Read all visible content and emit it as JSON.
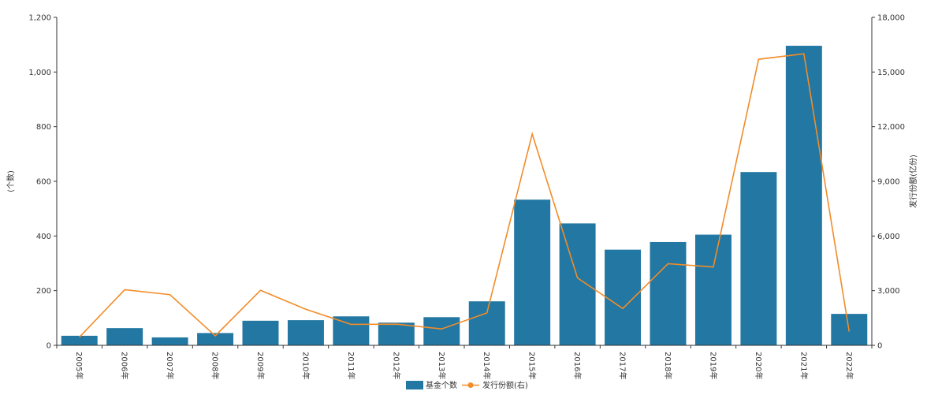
{
  "chart_data": {
    "type": "bar",
    "categories": [
      "2005年",
      "2006年",
      "2007年",
      "2008年",
      "2009年",
      "2010年",
      "2011年",
      "2012年",
      "2013年",
      "2014年",
      "2015年",
      "2016年",
      "2017年",
      "2018年",
      "2019年",
      "2020年",
      "2021年",
      "2022年"
    ],
    "series": [
      {
        "name": "基金个数",
        "type": "bar",
        "axis": "left",
        "color": "#2277a3",
        "values": [
          35,
          63,
          29,
          45,
          90,
          92,
          106,
          83,
          103,
          161,
          533,
          446,
          350,
          378,
          405,
          634,
          1096,
          115
        ]
      },
      {
        "name": "发行份额(右)",
        "type": "line",
        "axis": "right",
        "color": "#f28c28",
        "values": [
          450,
          3050,
          2780,
          520,
          3020,
          1980,
          1150,
          1160,
          900,
          1780,
          11600,
          3700,
          2020,
          4480,
          4300,
          15700,
          16000,
          750
        ]
      }
    ],
    "ylabel": "(个数)",
    "ylabel_right": "发行份额(亿份)",
    "ylim": [
      0,
      1200
    ],
    "ylim_right": [
      0,
      18000
    ],
    "yticks": [
      "0",
      "200",
      "400",
      "600",
      "800",
      "1,000",
      "1,200"
    ],
    "yticks_right": [
      "0",
      "3,000",
      "6,000",
      "9,000",
      "12,000",
      "15,000",
      "18,000"
    ],
    "grid": false,
    "legend": "bottom-center"
  }
}
